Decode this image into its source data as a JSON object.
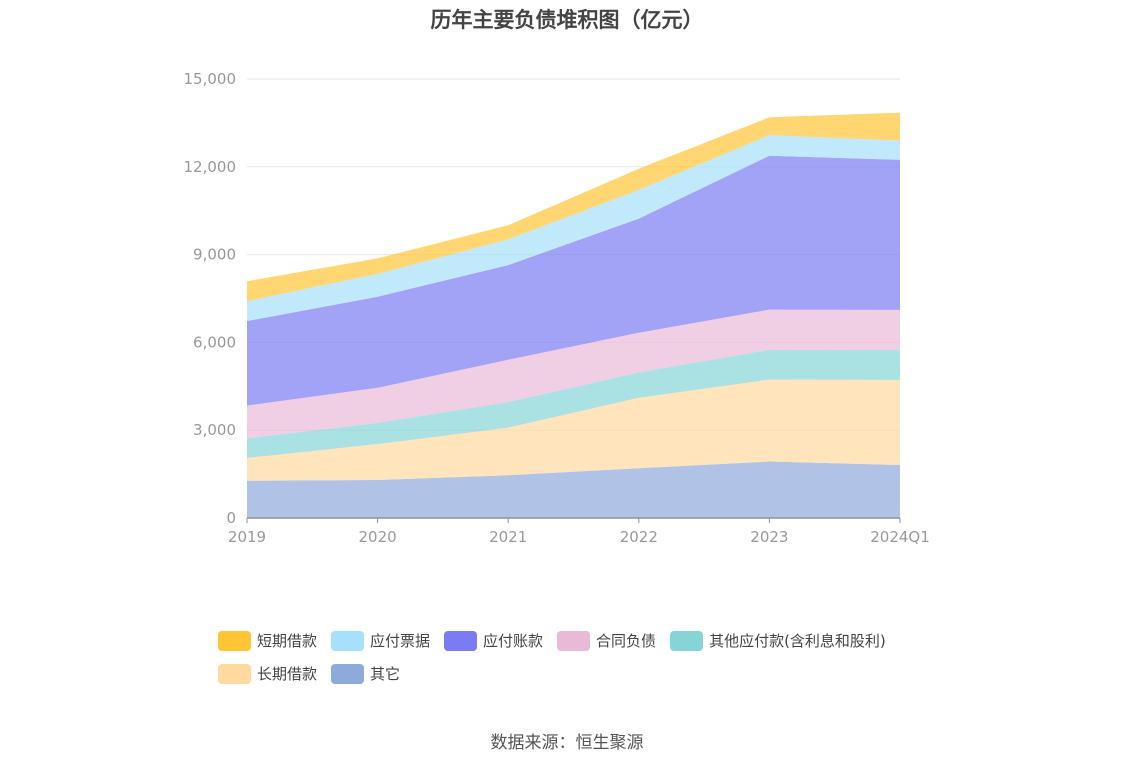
{
  "chart_data": {
    "type": "area",
    "stacked": true,
    "title": "历年主要负债堆积图（亿元）",
    "categories": [
      "2019",
      "2020",
      "2021",
      "2022",
      "2023",
      "2024Q1"
    ],
    "ylim": [
      0,
      15000
    ],
    "yticks": [
      "0",
      "3,000",
      "6,000",
      "9,000",
      "12,000",
      "15,000"
    ],
    "grid": true,
    "legend_position": "bottom",
    "series": [
      {
        "name": "其它",
        "color": "#8eaadb",
        "values": [
          1270,
          1300,
          1460,
          1700,
          1930,
          1810
        ]
      },
      {
        "name": "长期借款",
        "color": "#ffd9a0",
        "values": [
          780,
          1230,
          1630,
          2410,
          2800,
          2910
        ]
      },
      {
        "name": "其他应付款(含利息和股利)",
        "color": "#86d4d6",
        "values": [
          670,
          720,
          870,
          860,
          1020,
          1020
        ]
      },
      {
        "name": "合同负债",
        "color": "#e9b9d8",
        "values": [
          1120,
          1200,
          1450,
          1360,
          1370,
          1370
        ]
      },
      {
        "name": "应付账款",
        "color": "#7b7cf2",
        "values": [
          2890,
          3110,
          3230,
          3900,
          5260,
          5130
        ]
      },
      {
        "name": "应付票据",
        "color": "#a6e0fb",
        "values": [
          680,
          780,
          880,
          980,
          700,
          660
        ]
      },
      {
        "name": "短期借款",
        "color": "#ffc534",
        "values": [
          680,
          530,
          480,
          720,
          610,
          950
        ]
      }
    ],
    "legend_order": [
      "短期借款",
      "应付票据",
      "应付账款",
      "合同负债",
      "其他应付款(含利息和股利)",
      "长期借款",
      "其它"
    ]
  },
  "source_text": "数据来源：恒生聚源"
}
